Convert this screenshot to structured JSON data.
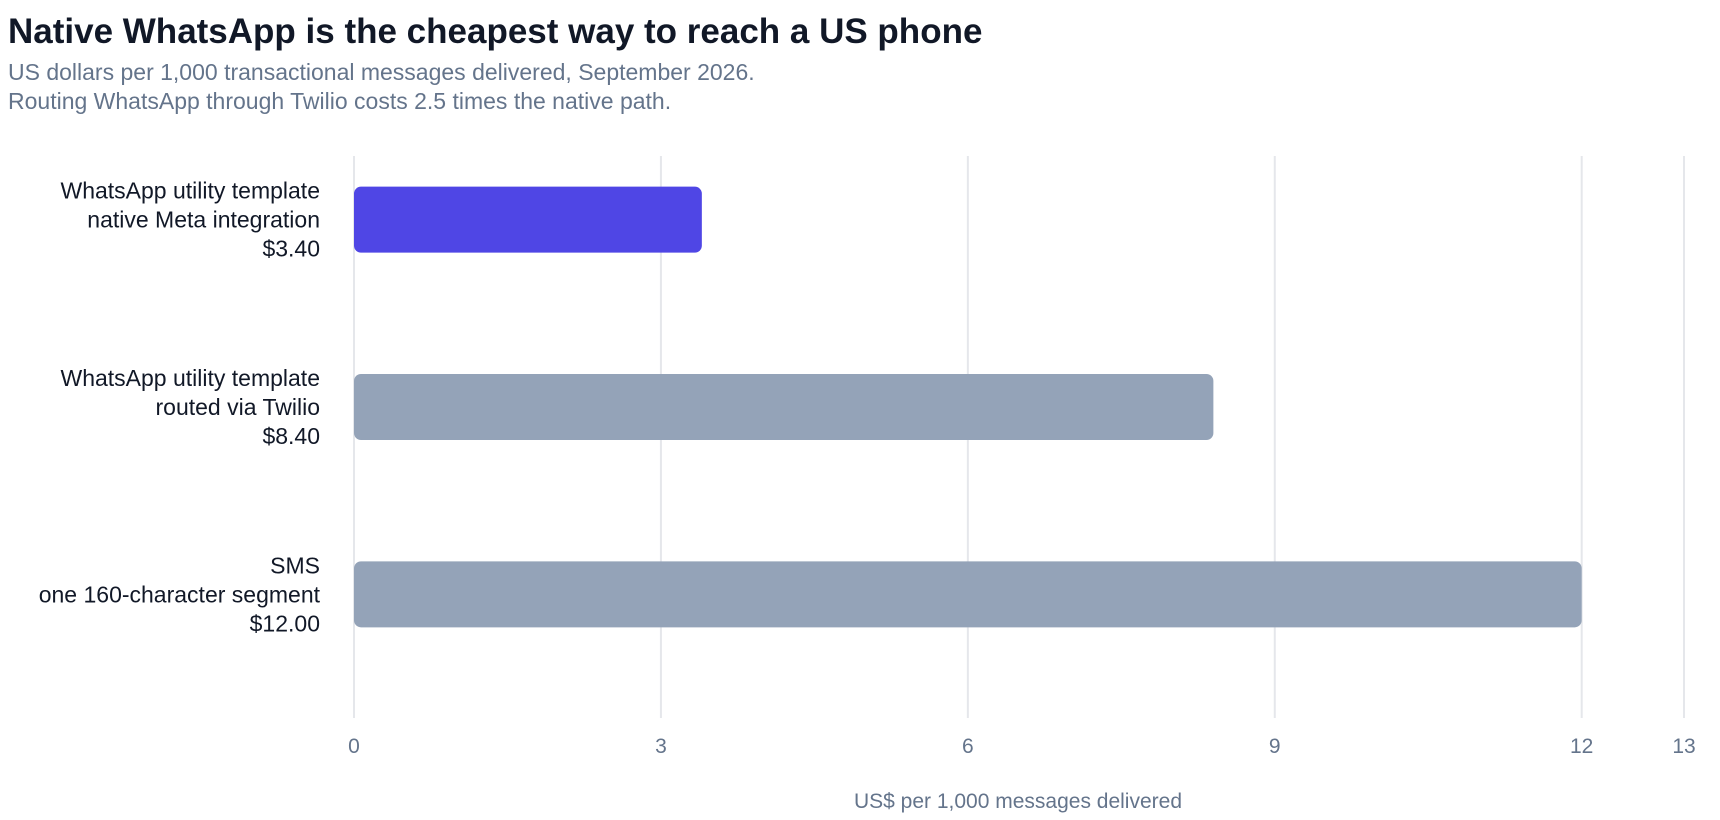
{
  "chart_data": {
    "type": "bar",
    "orientation": "horizontal",
    "title": "Native WhatsApp is the cheapest way to reach a US phone",
    "subtitle": [
      "US dollars per 1,000 transactional messages delivered, September 2026.",
      "Routing WhatsApp through Twilio costs 2.5 times the native path."
    ],
    "xlabel": "US$ per 1,000 messages delivered",
    "ylabel": "",
    "xlim": [
      0,
      13
    ],
    "xticks": [
      0,
      3,
      6,
      9,
      12,
      13
    ],
    "grid": true,
    "bars": [
      {
        "label_lines": [
          "WhatsApp utility template",
          "native Meta integration",
          "$3.40"
        ],
        "value": 3.4,
        "color": "#4f46e5"
      },
      {
        "label_lines": [
          "WhatsApp utility template",
          "routed via Twilio",
          "$8.40"
        ],
        "value": 8.4,
        "color": "#94a3b8"
      },
      {
        "label_lines": [
          "SMS",
          "one 160-character segment",
          "$12.00"
        ],
        "value": 12.0,
        "color": "#94a3b8"
      }
    ],
    "colors": {
      "grid": "#e5e7eb",
      "axis_text": "#64748b",
      "category_text": "#111827"
    }
  }
}
